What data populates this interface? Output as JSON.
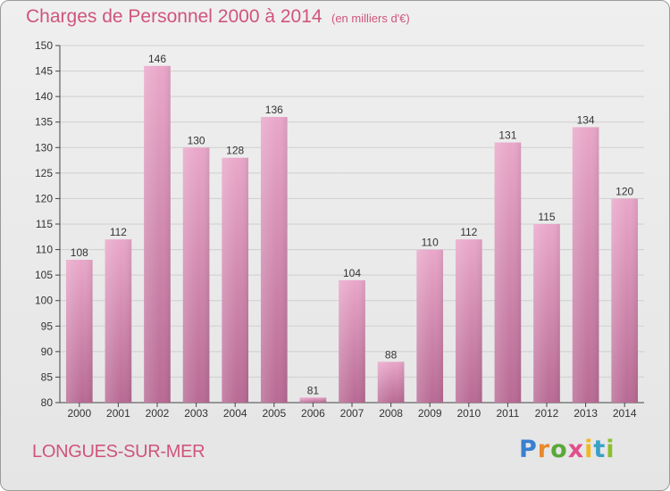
{
  "title": "Charges de Personnel 2000 à 2014",
  "subtitle": "(en milliers d'€)",
  "town": "LONGUES-SUR-MER",
  "logo": {
    "text": "Proxiti",
    "colors": [
      "#3a7fd0",
      "#e8892b",
      "#5aa83a",
      "#e04f8a",
      "#f0b820",
      "#3aa0c8",
      "#8cbf2e"
    ]
  },
  "colors": {
    "bar_top": "#e9a7c9",
    "bar_bottom": "#b86a94",
    "title": "#d0547b",
    "grid": "#cfcfcf"
  },
  "chart_data": {
    "type": "bar",
    "title": "Charges de Personnel 2000 à 2014",
    "subtitle": "(en milliers d'€)",
    "categories": [
      "2000",
      "2001",
      "2002",
      "2003",
      "2004",
      "2005",
      "2006",
      "2007",
      "2008",
      "2009",
      "2010",
      "2011",
      "2012",
      "2013",
      "2014"
    ],
    "values": [
      108,
      112,
      146,
      130,
      128,
      136,
      81,
      104,
      88,
      110,
      112,
      131,
      115,
      134,
      120
    ],
    "ylim": [
      80,
      150
    ],
    "yticks": [
      80,
      85,
      90,
      95,
      100,
      105,
      110,
      115,
      120,
      125,
      130,
      135,
      140,
      145,
      150
    ],
    "grid": true,
    "xlabel": "",
    "ylabel": ""
  }
}
